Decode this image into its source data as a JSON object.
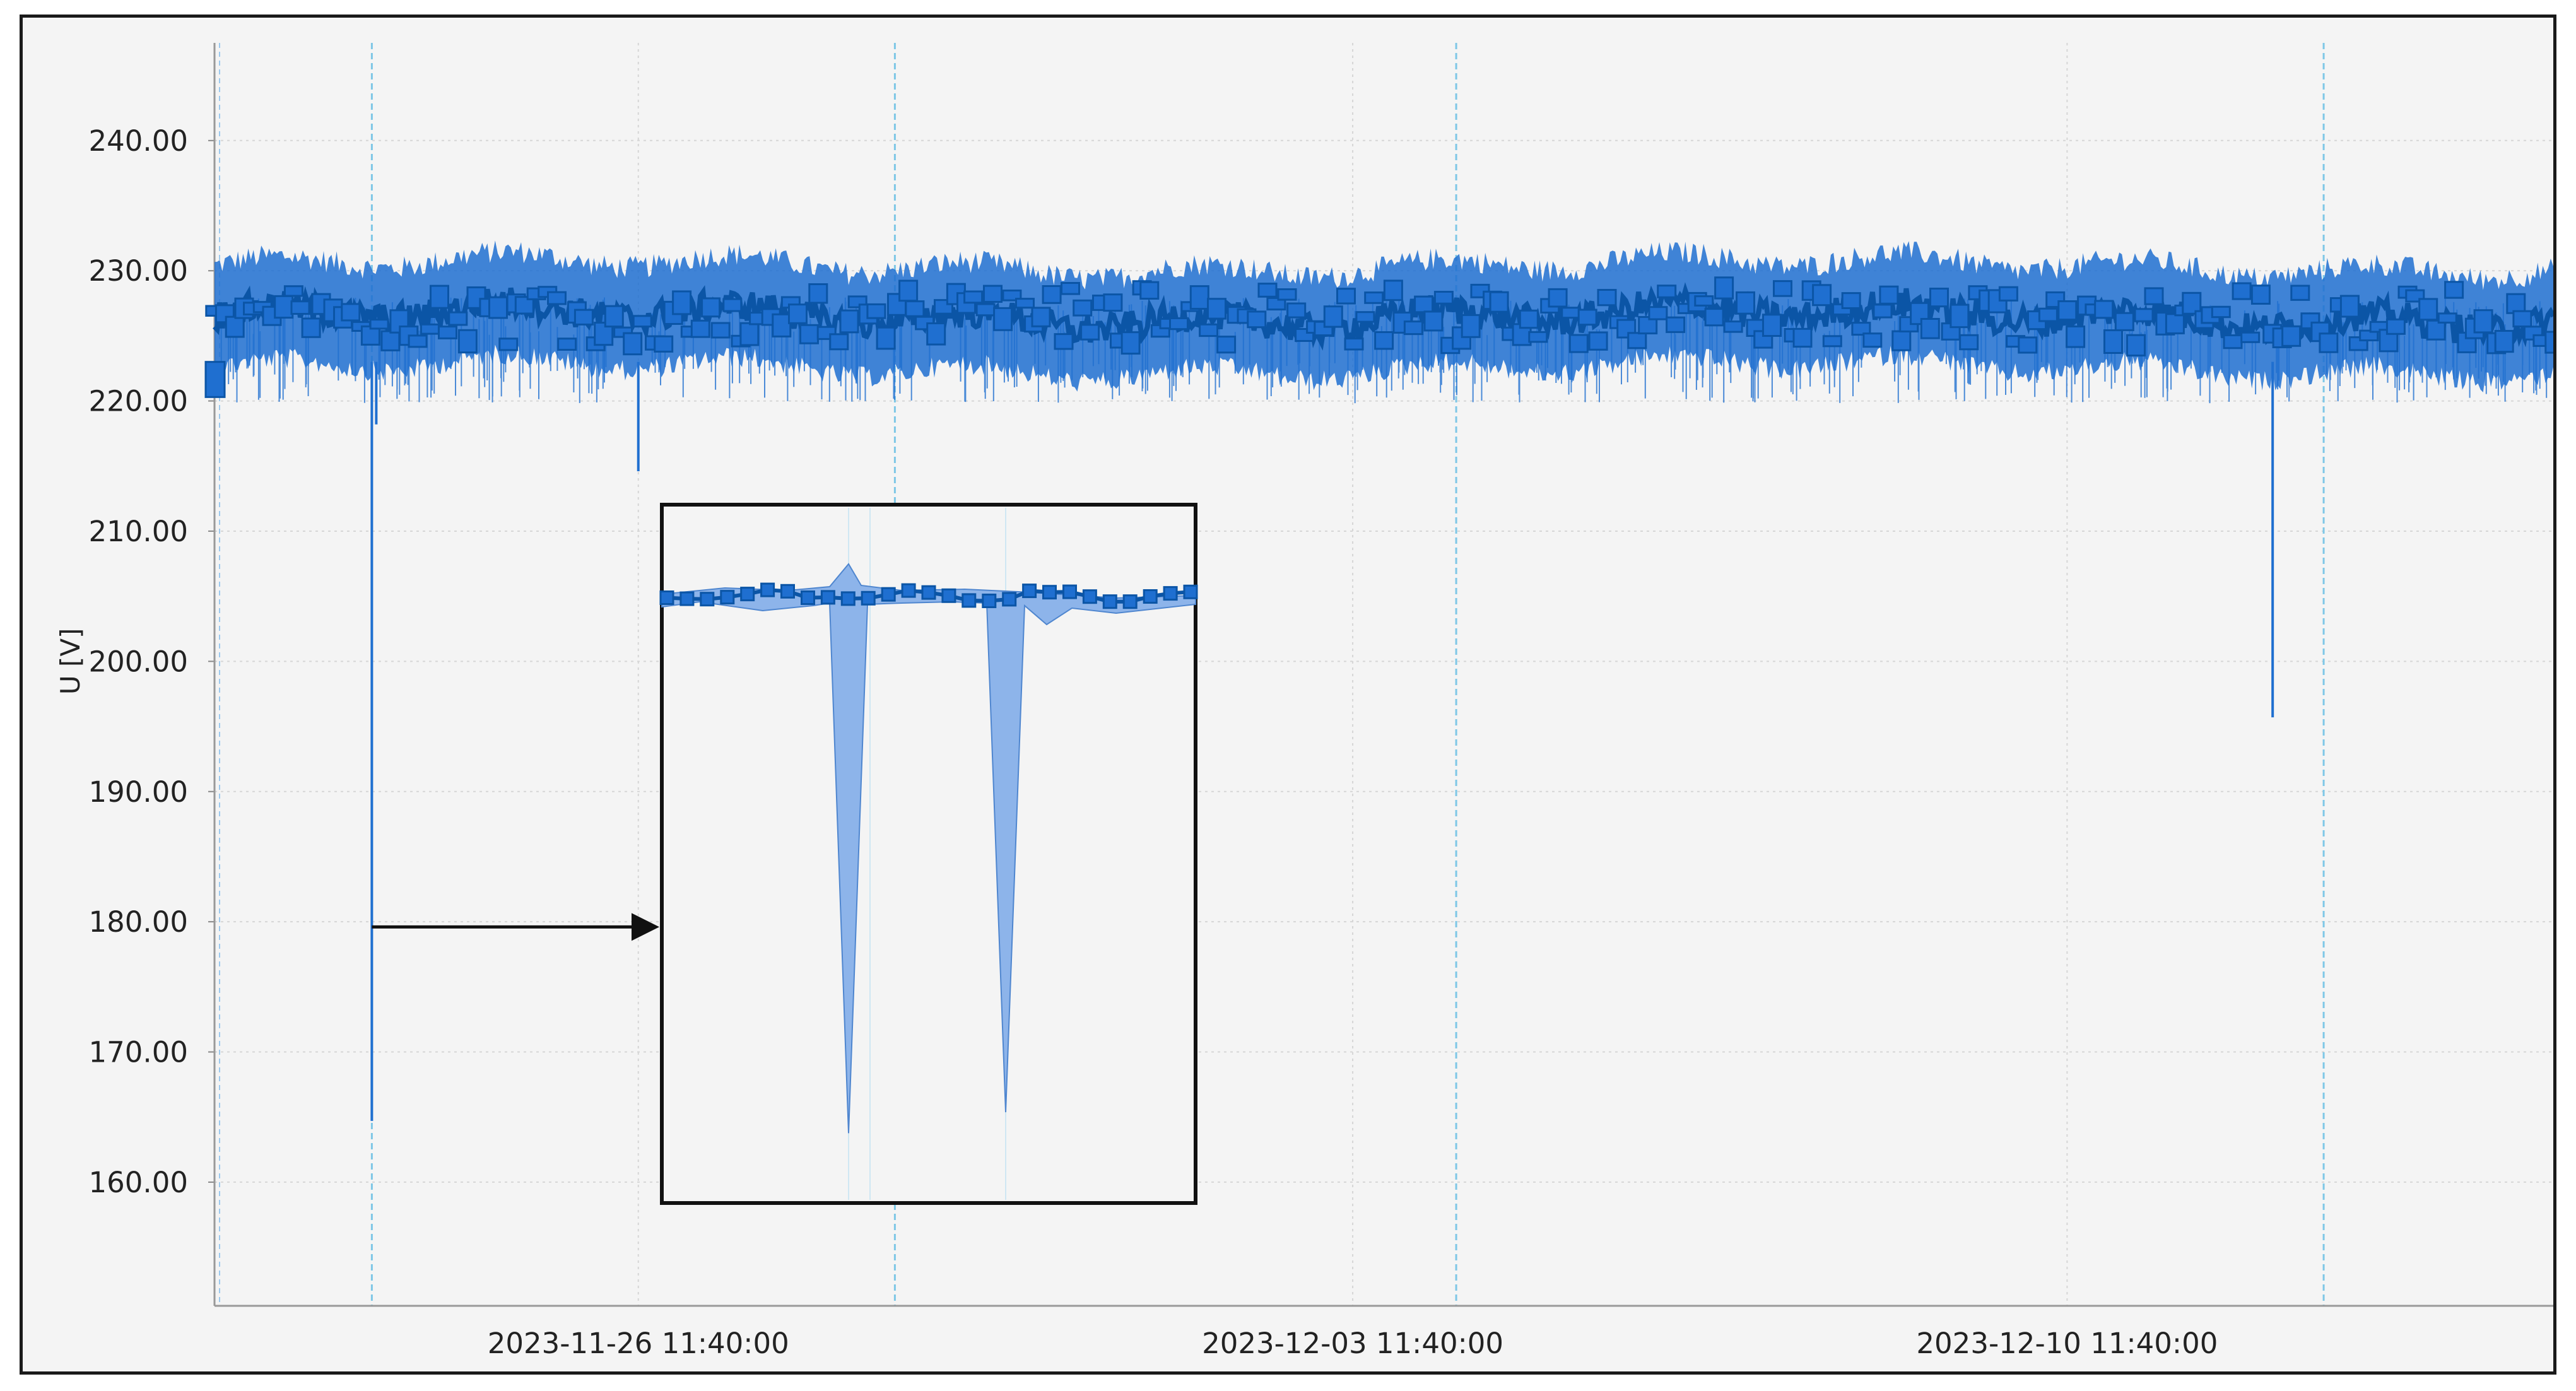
{
  "chart_data": {
    "type": "line",
    "ylabel": "U [V]",
    "xlabel": "",
    "ylim": [
      150.5,
      247.5
    ],
    "yticks": [
      160,
      170,
      180,
      190,
      200,
      210,
      220,
      230,
      240
    ],
    "ytick_labels": [
      "160.00",
      "170.00",
      "180.00",
      "190.00",
      "200.00",
      "210.00",
      "220.00",
      "230.00",
      "240.00"
    ],
    "x_start": "2023-11-22 08:00",
    "x_end": "2023-12-15 06:00",
    "xticks": [
      "2023-11-26 11:40",
      "2023-12-03 11:40",
      "2023-12-10 11:40"
    ],
    "xtick_labels": [
      "2023-11-26 11:40:00",
      "2023-12-03 11:40:00",
      "2023-12-10 11:40:00"
    ],
    "grid": true,
    "series": [
      {
        "color": "#0b55a6",
        "band_color": "#1f6fd0",
        "baseline_voltage": 226.5,
        "typical_range": [
          223,
          230
        ],
        "notable_dips": [
          {
            "time": "2023-11-23 21:00",
            "min_voltage": 164.7
          },
          {
            "time": "2023-11-26 11:40",
            "min_voltage": 214.6
          },
          {
            "time": "2023-12-12 12:00",
            "min_voltage": 195.7
          }
        ]
      }
    ],
    "inset": {
      "description": "zoomed view of the first dip showing two sharp voltage drops",
      "source_time": "2023-11-23 21:00",
      "dip_depths_fraction": [
        0.9,
        0.87
      ]
    }
  },
  "colors": {
    "background": "#f4f4f4",
    "grid": "#d6d6d6",
    "marker_line": "#7ec7e6",
    "series": "#0b55a6",
    "inset_fill": "#8db4ea"
  }
}
